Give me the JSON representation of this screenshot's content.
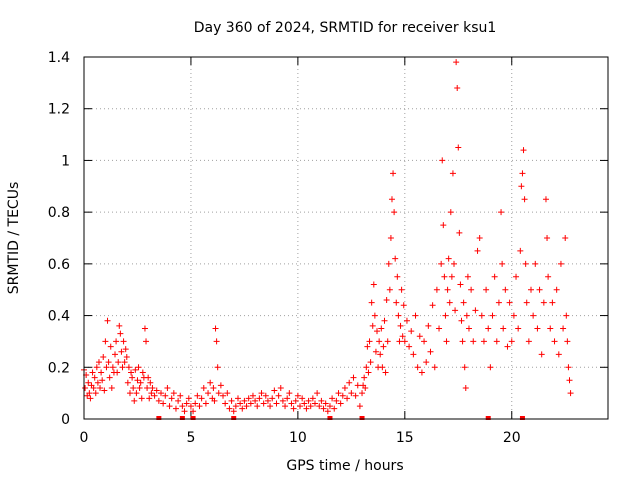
{
  "chart_data": {
    "type": "scatter",
    "title": "Day 360 of 2024, SRMTID for receiver ksu1",
    "xlabel": "GPS time / hours",
    "ylabel": "SRMTID / TECUs",
    "xlim": [
      0,
      24.5
    ],
    "ylim": [
      0,
      1.4
    ],
    "x_ticks": [
      0,
      5,
      10,
      15,
      20
    ],
    "y_ticks": [
      0,
      0.2,
      0.4,
      0.6,
      0.8,
      1,
      1.2,
      1.4
    ],
    "x_tick_labels": [
      "0",
      "5",
      "10",
      "15",
      "20"
    ],
    "y_tick_labels": [
      "0",
      "0.2",
      "0.4",
      "0.6",
      "0.8",
      "1",
      "1.2",
      "1.4"
    ],
    "grid": true,
    "marker_color": "#ff0000",
    "marker": "plus",
    "series": [
      {
        "name": "SRMTID",
        "points": [
          [
            0.0,
            0.19
          ],
          [
            0.05,
            0.12
          ],
          [
            0.1,
            0.17
          ],
          [
            0.15,
            0.09
          ],
          [
            0.2,
            0.14
          ],
          [
            0.25,
            0.1
          ],
          [
            0.3,
            0.08
          ],
          [
            0.35,
            0.13
          ],
          [
            0.4,
            0.18
          ],
          [
            0.45,
            0.12
          ],
          [
            0.5,
            0.16
          ],
          [
            0.55,
            0.1
          ],
          [
            0.6,
            0.2
          ],
          [
            0.65,
            0.14
          ],
          [
            0.7,
            0.22
          ],
          [
            0.75,
            0.12
          ],
          [
            0.8,
            0.18
          ],
          [
            0.85,
            0.15
          ],
          [
            0.9,
            0.24
          ],
          [
            0.95,
            0.11
          ],
          [
            1.0,
            0.3
          ],
          [
            1.05,
            0.2
          ],
          [
            1.1,
            0.38
          ],
          [
            1.15,
            0.22
          ],
          [
            1.2,
            0.16
          ],
          [
            1.25,
            0.28
          ],
          [
            1.3,
            0.12
          ],
          [
            1.35,
            0.2
          ],
          [
            1.4,
            0.18
          ],
          [
            1.45,
            0.25
          ],
          [
            1.5,
            0.3
          ],
          [
            1.55,
            0.18
          ],
          [
            1.6,
            0.22
          ],
          [
            1.65,
            0.36
          ],
          [
            1.7,
            0.33
          ],
          [
            1.75,
            0.26
          ],
          [
            1.8,
            0.2
          ],
          [
            1.85,
            0.3
          ],
          [
            1.9,
            0.22
          ],
          [
            1.95,
            0.27
          ],
          [
            2.0,
            0.24
          ],
          [
            2.05,
            0.14
          ],
          [
            2.1,
            0.2
          ],
          [
            2.15,
            0.1
          ],
          [
            2.2,
            0.18
          ],
          [
            2.25,
            0.16
          ],
          [
            2.3,
            0.12
          ],
          [
            2.35,
            0.07
          ],
          [
            2.4,
            0.19
          ],
          [
            2.45,
            0.1
          ],
          [
            2.5,
            0.15
          ],
          [
            2.55,
            0.2
          ],
          [
            2.6,
            0.12
          ],
          [
            2.65,
            0.14
          ],
          [
            2.7,
            0.08
          ],
          [
            2.75,
            0.18
          ],
          [
            2.8,
            0.16
          ],
          [
            2.85,
            0.35
          ],
          [
            2.9,
            0.3
          ],
          [
            2.95,
            0.12
          ],
          [
            3.0,
            0.16
          ],
          [
            3.05,
            0.08
          ],
          [
            3.1,
            0.14
          ],
          [
            3.15,
            0.1
          ],
          [
            3.2,
            0.12
          ],
          [
            3.3,
            0.09
          ],
          [
            3.4,
            0.11
          ],
          [
            3.5,
            0.07
          ],
          [
            3.6,
            0.1
          ],
          [
            3.7,
            0.06
          ],
          [
            3.8,
            0.09
          ],
          [
            3.9,
            0.12
          ],
          [
            4.0,
            0.05
          ],
          [
            4.1,
            0.08
          ],
          [
            4.2,
            0.1
          ],
          [
            4.3,
            0.04
          ],
          [
            4.4,
            0.07
          ],
          [
            4.5,
            0.09
          ],
          [
            4.6,
            0.05
          ],
          [
            4.7,
            0.03
          ],
          [
            4.8,
            0.06
          ],
          [
            4.9,
            0.08
          ],
          [
            5.0,
            0.05
          ],
          [
            5.1,
            0.03
          ],
          [
            5.2,
            0.06
          ],
          [
            5.3,
            0.09
          ],
          [
            5.4,
            0.05
          ],
          [
            5.5,
            0.08
          ],
          [
            5.6,
            0.12
          ],
          [
            5.7,
            0.06
          ],
          [
            5.8,
            0.1
          ],
          [
            5.9,
            0.14
          ],
          [
            6.0,
            0.08
          ],
          [
            6.05,
            0.12
          ],
          [
            6.1,
            0.07
          ],
          [
            6.15,
            0.35
          ],
          [
            6.2,
            0.3
          ],
          [
            6.25,
            0.2
          ],
          [
            6.3,
            0.1
          ],
          [
            6.4,
            0.13
          ],
          [
            6.5,
            0.09
          ],
          [
            6.6,
            0.06
          ],
          [
            6.7,
            0.1
          ],
          [
            6.8,
            0.04
          ],
          [
            6.9,
            0.07
          ],
          [
            7.0,
            0.03
          ],
          [
            7.1,
            0.05
          ],
          [
            7.2,
            0.08
          ],
          [
            7.3,
            0.06
          ],
          [
            7.4,
            0.04
          ],
          [
            7.5,
            0.07
          ],
          [
            7.6,
            0.05
          ],
          [
            7.7,
            0.08
          ],
          [
            7.8,
            0.06
          ],
          [
            7.9,
            0.09
          ],
          [
            8.0,
            0.07
          ],
          [
            8.1,
            0.05
          ],
          [
            8.2,
            0.08
          ],
          [
            8.3,
            0.1
          ],
          [
            8.4,
            0.06
          ],
          [
            8.5,
            0.09
          ],
          [
            8.6,
            0.07
          ],
          [
            8.7,
            0.05
          ],
          [
            8.8,
            0.08
          ],
          [
            8.9,
            0.11
          ],
          [
            9.0,
            0.06
          ],
          [
            9.1,
            0.09
          ],
          [
            9.2,
            0.12
          ],
          [
            9.3,
            0.07
          ],
          [
            9.4,
            0.05
          ],
          [
            9.5,
            0.08
          ],
          [
            9.6,
            0.1
          ],
          [
            9.7,
            0.06
          ],
          [
            9.8,
            0.04
          ],
          [
            9.9,
            0.07
          ],
          [
            10.0,
            0.09
          ],
          [
            10.1,
            0.05
          ],
          [
            10.2,
            0.08
          ],
          [
            10.3,
            0.06
          ],
          [
            10.4,
            0.04
          ],
          [
            10.5,
            0.07
          ],
          [
            10.6,
            0.05
          ],
          [
            10.7,
            0.08
          ],
          [
            10.8,
            0.06
          ],
          [
            10.9,
            0.1
          ],
          [
            11.0,
            0.05
          ],
          [
            11.1,
            0.07
          ],
          [
            11.2,
            0.04
          ],
          [
            11.3,
            0.06
          ],
          [
            11.4,
            0.03
          ],
          [
            11.5,
            0.05
          ],
          [
            11.6,
            0.08
          ],
          [
            11.7,
            0.04
          ],
          [
            11.8,
            0.07
          ],
          [
            11.9,
            0.1
          ],
          [
            12.0,
            0.06
          ],
          [
            12.1,
            0.09
          ],
          [
            12.2,
            0.12
          ],
          [
            12.3,
            0.08
          ],
          [
            12.4,
            0.14
          ],
          [
            12.5,
            0.1
          ],
          [
            12.6,
            0.16
          ],
          [
            12.7,
            0.09
          ],
          [
            12.8,
            0.13
          ],
          [
            12.9,
            0.05
          ],
          [
            13.0,
            0.1
          ],
          [
            13.05,
            0.13
          ],
          [
            13.1,
            0.16
          ],
          [
            13.15,
            0.12
          ],
          [
            13.2,
            0.2
          ],
          [
            13.25,
            0.28
          ],
          [
            13.3,
            0.18
          ],
          [
            13.35,
            0.3
          ],
          [
            13.4,
            0.22
          ],
          [
            13.45,
            0.45
          ],
          [
            13.5,
            0.36
          ],
          [
            13.55,
            0.52
          ],
          [
            13.6,
            0.4
          ],
          [
            13.65,
            0.26
          ],
          [
            13.7,
            0.34
          ],
          [
            13.75,
            0.2
          ],
          [
            13.8,
            0.3
          ],
          [
            13.85,
            0.25
          ],
          [
            13.9,
            0.35
          ],
          [
            13.95,
            0.2
          ],
          [
            14.0,
            0.28
          ],
          [
            14.05,
            0.38
          ],
          [
            14.1,
            0.18
          ],
          [
            14.15,
            0.46
          ],
          [
            14.2,
            0.3
          ],
          [
            14.25,
            0.6
          ],
          [
            14.3,
            0.5
          ],
          [
            14.35,
            0.7
          ],
          [
            14.4,
            0.85
          ],
          [
            14.45,
            0.95
          ],
          [
            14.5,
            0.8
          ],
          [
            14.55,
            0.62
          ],
          [
            14.6,
            0.45
          ],
          [
            14.65,
            0.55
          ],
          [
            14.7,
            0.4
          ],
          [
            14.75,
            0.3
          ],
          [
            14.8,
            0.36
          ],
          [
            14.85,
            0.5
          ],
          [
            14.9,
            0.32
          ],
          [
            14.95,
            0.44
          ],
          [
            15.0,
            0.3
          ],
          [
            15.1,
            0.38
          ],
          [
            15.2,
            0.28
          ],
          [
            15.3,
            0.34
          ],
          [
            15.4,
            0.25
          ],
          [
            15.5,
            0.4
          ],
          [
            15.6,
            0.2
          ],
          [
            15.7,
            0.32
          ],
          [
            15.8,
            0.18
          ],
          [
            15.9,
            0.3
          ],
          [
            16.0,
            0.22
          ],
          [
            16.1,
            0.36
          ],
          [
            16.2,
            0.26
          ],
          [
            16.3,
            0.44
          ],
          [
            16.4,
            0.2
          ],
          [
            16.5,
            0.5
          ],
          [
            16.6,
            0.35
          ],
          [
            16.7,
            0.6
          ],
          [
            16.75,
            1.0
          ],
          [
            16.8,
            0.75
          ],
          [
            16.85,
            0.55
          ],
          [
            16.9,
            0.4
          ],
          [
            16.95,
            0.3
          ],
          [
            17.0,
            0.5
          ],
          [
            17.05,
            0.62
          ],
          [
            17.1,
            0.45
          ],
          [
            17.15,
            0.8
          ],
          [
            17.2,
            0.55
          ],
          [
            17.25,
            0.95
          ],
          [
            17.3,
            0.6
          ],
          [
            17.35,
            0.42
          ],
          [
            17.4,
            1.38
          ],
          [
            17.45,
            1.28
          ],
          [
            17.5,
            1.05
          ],
          [
            17.55,
            0.72
          ],
          [
            17.6,
            0.52
          ],
          [
            17.65,
            0.38
          ],
          [
            17.7,
            0.3
          ],
          [
            17.75,
            0.45
          ],
          [
            17.8,
            0.2
          ],
          [
            17.85,
            0.12
          ],
          [
            17.9,
            0.4
          ],
          [
            17.95,
            0.55
          ],
          [
            18.0,
            0.35
          ],
          [
            18.1,
            0.5
          ],
          [
            18.2,
            0.3
          ],
          [
            18.3,
            0.42
          ],
          [
            18.4,
            0.65
          ],
          [
            18.5,
            0.7
          ],
          [
            18.6,
            0.4
          ],
          [
            18.7,
            0.3
          ],
          [
            18.8,
            0.5
          ],
          [
            18.9,
            0.35
          ],
          [
            19.0,
            0.2
          ],
          [
            19.1,
            0.4
          ],
          [
            19.2,
            0.55
          ],
          [
            19.3,
            0.3
          ],
          [
            19.4,
            0.45
          ],
          [
            19.5,
            0.8
          ],
          [
            19.55,
            0.6
          ],
          [
            19.6,
            0.35
          ],
          [
            19.7,
            0.5
          ],
          [
            19.8,
            0.28
          ],
          [
            19.9,
            0.45
          ],
          [
            20.0,
            0.3
          ],
          [
            20.1,
            0.4
          ],
          [
            20.2,
            0.55
          ],
          [
            20.3,
            0.35
          ],
          [
            20.4,
            0.65
          ],
          [
            20.45,
            0.9
          ],
          [
            20.5,
            0.95
          ],
          [
            20.55,
            1.04
          ],
          [
            20.6,
            0.85
          ],
          [
            20.65,
            0.6
          ],
          [
            20.7,
            0.45
          ],
          [
            20.8,
            0.3
          ],
          [
            20.9,
            0.5
          ],
          [
            21.0,
            0.4
          ],
          [
            21.1,
            0.6
          ],
          [
            21.2,
            0.35
          ],
          [
            21.3,
            0.5
          ],
          [
            21.4,
            0.25
          ],
          [
            21.5,
            0.45
          ],
          [
            21.6,
            0.85
          ],
          [
            21.65,
            0.7
          ],
          [
            21.7,
            0.55
          ],
          [
            21.8,
            0.35
          ],
          [
            21.9,
            0.45
          ],
          [
            22.0,
            0.3
          ],
          [
            22.1,
            0.5
          ],
          [
            22.2,
            0.25
          ],
          [
            22.3,
            0.6
          ],
          [
            22.4,
            0.35
          ],
          [
            22.5,
            0.7
          ],
          [
            22.55,
            0.4
          ],
          [
            22.6,
            0.3
          ],
          [
            22.65,
            0.2
          ],
          [
            22.7,
            0.15
          ],
          [
            22.75,
            0.1
          ]
        ]
      }
    ],
    "baseline_markers_x": [
      3.5,
      4.6,
      5.1,
      7.0,
      11.5,
      13.0,
      18.9,
      20.5
    ]
  }
}
